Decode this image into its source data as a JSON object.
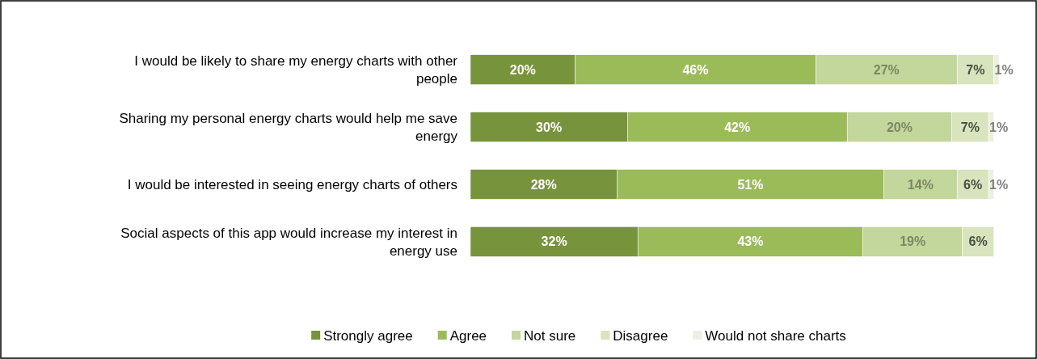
{
  "chart_data": {
    "type": "bar",
    "orientation": "horizontal",
    "stacked": true,
    "xlim": [
      0,
      101
    ],
    "legend": "bottom",
    "categories": [
      "I would be likely to share my energy charts with other people",
      "Sharing my personal energy charts would help me save energy",
      "I would be interested in seeing energy charts of others",
      "Social aspects of this app would increase my interest in energy use"
    ],
    "series": [
      {
        "name": "Strongly agree",
        "color": "#77933c",
        "values": [
          20,
          30,
          28,
          32
        ],
        "value_labels": [
          "20%",
          "30%",
          "28%",
          "32%"
        ]
      },
      {
        "name": "Agree",
        "color": "#9bbb59",
        "values": [
          46,
          42,
          51,
          43
        ],
        "value_labels": [
          "46%",
          "42%",
          "51%",
          "43%"
        ]
      },
      {
        "name": "Not sure",
        "color": "#c3d69b",
        "values": [
          27,
          20,
          14,
          19
        ],
        "value_labels": [
          "27%",
          "20%",
          "14%",
          "19%"
        ]
      },
      {
        "name": "Disagree",
        "color": "#d7e4bd",
        "values": [
          7,
          7,
          6,
          6
        ],
        "value_labels": [
          "7%",
          "7%",
          "6%",
          "6%"
        ]
      },
      {
        "name": "Would not share charts",
        "color": "#ebf1de",
        "values": [
          1,
          1,
          1,
          null
        ],
        "value_labels": [
          "1%",
          "1%",
          "1%",
          null
        ]
      }
    ]
  }
}
